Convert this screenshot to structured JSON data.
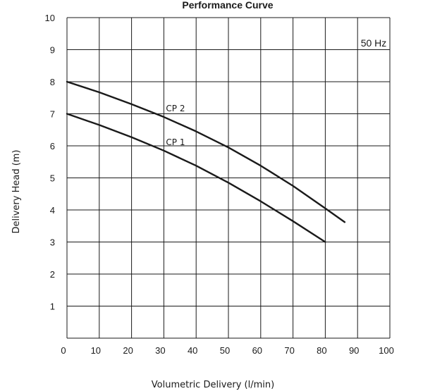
{
  "chart_data": {
    "type": "line",
    "title": "Performance Curve",
    "xlabel": "Volumetric Delivery (l/min)",
    "ylabel": "Delivery Head (m)",
    "xlim": [
      0,
      100
    ],
    "ylim": [
      0,
      10
    ],
    "x_ticks": [
      "0",
      "10",
      "20",
      "30",
      "40",
      "50",
      "60",
      "70",
      "80",
      "90",
      "100"
    ],
    "y_ticks": [
      "1",
      "2",
      "3",
      "4",
      "5",
      "6",
      "7",
      "8",
      "9",
      "10"
    ],
    "grid": true,
    "annotation": "50 Hz",
    "series": [
      {
        "name": "CP 2",
        "x": [
          0,
          10,
          20,
          30,
          40,
          50,
          60,
          70,
          80,
          86
        ],
        "y": [
          8.0,
          7.67,
          7.3,
          6.9,
          6.45,
          5.95,
          5.38,
          4.75,
          4.05,
          3.62
        ]
      },
      {
        "name": "CP 1",
        "x": [
          0,
          10,
          20,
          30,
          40,
          50,
          60,
          70,
          80
        ],
        "y": [
          7.0,
          6.65,
          6.27,
          5.85,
          5.38,
          4.85,
          4.27,
          3.65,
          3.0
        ]
      }
    ]
  }
}
